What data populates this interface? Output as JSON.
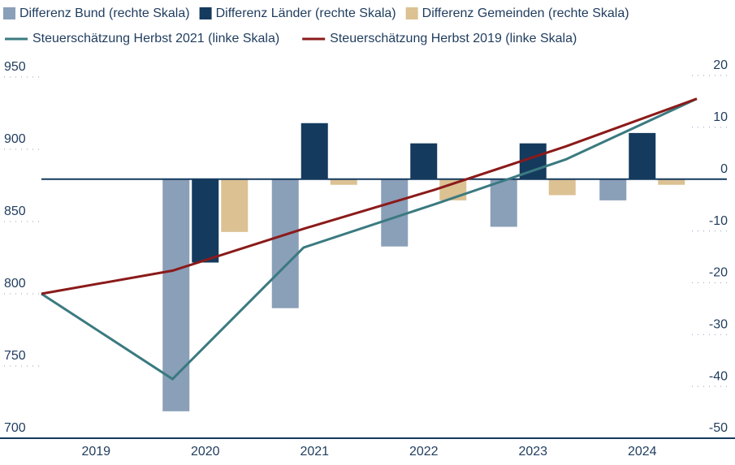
{
  "chart_data": {
    "type": "bar",
    "categories": [
      "2019",
      "2020",
      "2021",
      "2022",
      "2023",
      "2024"
    ],
    "series": [
      {
        "name": "Differenz Bund (rechte Skala)",
        "type": "bar",
        "axis": "y2",
        "color": "#8a9fb8",
        "values": [
          null,
          -44.8,
          -24.9,
          -13,
          -9.2,
          -4.1
        ]
      },
      {
        "name": "Differenz Länder (rechte Skala)",
        "type": "bar",
        "axis": "y2",
        "color": "#143a5e",
        "values": [
          null,
          -16.1,
          10.8,
          6.9,
          6.9,
          8.9
        ]
      },
      {
        "name": "Differenz Gemeinden (rechte Skala)",
        "type": "bar",
        "axis": "y2",
        "color": "#dcc193",
        "values": [
          null,
          -10.2,
          -1.1,
          -4.1,
          -3.1,
          -1.1
        ]
      },
      {
        "name": "Steuerschätzung Herbst 2021 (linke Skala)",
        "type": "line",
        "color": "#3a7a80",
        "values": [
          800,
          741,
          832,
          862,
          893,
          935
        ]
      },
      {
        "name": "Steuerschätzung Herbst 2019 (linke Skala)",
        "type": "line",
        "color": "#8b1a1a",
        "values": [
          800,
          816,
          845,
          872,
          902,
          935
        ]
      }
    ],
    "ylim": [
      700,
      950
    ],
    "yticks": [
      700,
      750,
      800,
      850,
      900,
      950
    ],
    "y2lim": [
      -50,
      20
    ],
    "y2ticks": [
      -50,
      -40,
      -30,
      -20,
      -10,
      0,
      10,
      20
    ]
  }
}
